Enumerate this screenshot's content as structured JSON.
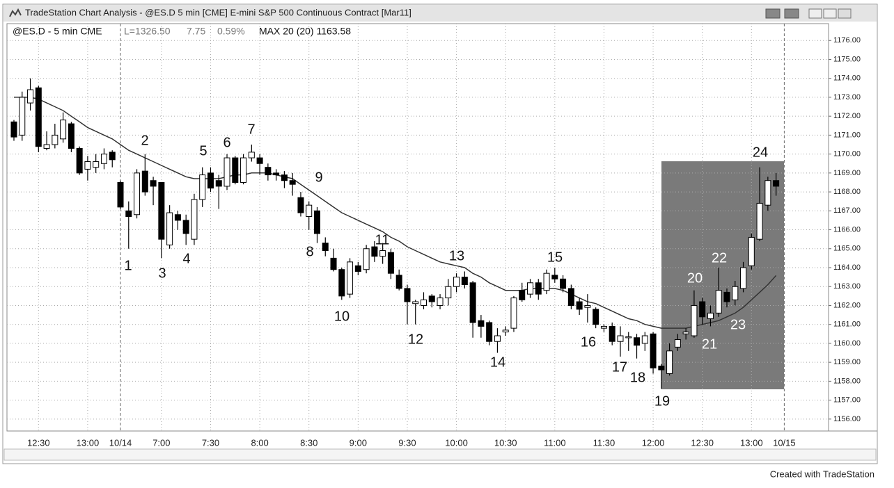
{
  "window_title": "TradeStation Chart Analysis - @ES.D 5 min [CME] E-mini S&P 500 Continuous Contract [Mar11]",
  "footer": "Created with TradeStation",
  "chart_data": {
    "type": "candlestick",
    "header": {
      "symbol": "@ES.D - 5 min CME",
      "last": "L=1326.50",
      "change": "7.75",
      "change_pct": "0.59%",
      "study": "MAX 20 (20) 1163.58"
    },
    "categories": [
      null,
      null,
      null,
      "12:30",
      null,
      null,
      null,
      null,
      null,
      "13:00",
      null,
      null,
      null,
      "10/14",
      null,
      null,
      null,
      null,
      "7:00",
      null,
      null,
      null,
      null,
      null,
      "7:30",
      null,
      null,
      null,
      null,
      null,
      "8:00",
      null,
      null,
      null,
      null,
      null,
      "8:30",
      null,
      null,
      null,
      null,
      null,
      "9:00",
      null,
      null,
      null,
      null,
      null,
      "9:30",
      null,
      null,
      null,
      null,
      null,
      "10:00",
      null,
      null,
      null,
      null,
      null,
      "10:30",
      null,
      null,
      null,
      null,
      null,
      "11:00",
      null,
      null,
      null,
      null,
      null,
      "11:30",
      null,
      null,
      null,
      null,
      null,
      "12:00",
      null,
      null,
      null,
      null,
      null,
      "12:30",
      null,
      null,
      null,
      null,
      null,
      "13:00",
      null,
      null,
      null
    ],
    "next_session_label": "10/15",
    "open": [
      1171.7,
      1171.0,
      1172.7,
      1173.5,
      1170.3,
      1170.5,
      1170.8,
      1171.6,
      1170.3,
      1169.2,
      1169.3,
      1169.5,
      1170.1,
      1168.5,
      1167.0,
      1166.8,
      1169.1,
      1168.6,
      1168.5,
      1165.2,
      1166.8,
      1166.5,
      1165.5,
      1167.6,
      1169.0,
      1168.6,
      1168.3,
      1169.8,
      1168.5,
      1169.8,
      1169.8,
      1169.3,
      1169.0,
      1168.9,
      1168.6,
      1167.7,
      1166.7,
      1167.0,
      1165.3,
      1164.5,
      1163.9,
      1162.6,
      1164.1,
      1163.9,
      1165.1,
      1164.6,
      1164.8,
      1163.6,
      1162.9,
      1162.1,
      1162.0,
      1162.5,
      1162.0,
      1162.4,
      1163.0,
      1163.5,
      1163.2,
      1161.2,
      1161.1,
      1160.1,
      1160.6,
      1160.8,
      1162.8,
      1162.6,
      1163.2,
      1162.8,
      1163.6,
      1163.4,
      1162.9,
      1162.2,
      1161.9,
      1161.8,
      1160.8,
      1160.9,
      1160.1,
      1160.3,
      1160.3,
      1160.0,
      1160.5,
      1158.8,
      1158.4,
      1159.8,
      1160.5,
      1160.4,
      1162.2,
      1161.3,
      1161.6,
      1162.7,
      1162.3,
      1162.9,
      1164.1,
      1165.5,
      1167.3,
      1168.6
    ],
    "high": [
      1171.8,
      1173.3,
      1174.0,
      1173.6,
      1171.2,
      1171.6,
      1172.2,
      1171.7,
      1170.4,
      1169.9,
      1170.0,
      1170.3,
      1170.2,
      1168.6,
      1167.5,
      1169.2,
      1170.0,
      1168.8,
      1168.5,
      1167.3,
      1167.0,
      1166.8,
      1167.9,
      1169.3,
      1169.3,
      1168.9,
      1170.0,
      1169.9,
      1170.0,
      1170.5,
      1170.0,
      1169.5,
      1169.2,
      1169.1,
      1169.0,
      1168.0,
      1167.5,
      1167.2,
      1165.6,
      1165.0,
      1164.0,
      1164.5,
      1164.3,
      1165.2,
      1165.4,
      1165.3,
      1165.0,
      1163.9,
      1163.1,
      1162.3,
      1162.7,
      1162.6,
      1162.6,
      1163.4,
      1163.7,
      1163.8,
      1163.3,
      1161.5,
      1161.2,
      1160.8,
      1160.9,
      1162.5,
      1163.2,
      1163.4,
      1163.4,
      1163.9,
      1164.0,
      1163.6,
      1163.1,
      1162.4,
      1162.6,
      1161.9,
      1161.0,
      1161.1,
      1160.9,
      1160.6,
      1160.5,
      1160.6,
      1160.6,
      1158.9,
      1160.0,
      1160.5,
      1160.8,
      1162.8,
      1162.4,
      1162.0,
      1164.0,
      1162.9,
      1163.3,
      1164.3,
      1165.8,
      1169.3,
      1168.8,
      1169.0
    ],
    "low": [
      1170.7,
      1170.7,
      1172.3,
      1170.1,
      1170.2,
      1170.3,
      1170.6,
      1170.1,
      1168.9,
      1168.6,
      1169.0,
      1169.2,
      1169.3,
      1167.1,
      1165.0,
      1166.6,
      1167.8,
      1167.3,
      1164.5,
      1165.0,
      1166.0,
      1165.2,
      1165.2,
      1167.2,
      1168.0,
      1167.1,
      1168.1,
      1168.4,
      1168.4,
      1169.6,
      1168.9,
      1168.6,
      1168.6,
      1168.2,
      1167.8,
      1166.7,
      1166.0,
      1165.3,
      1164.6,
      1163.8,
      1162.3,
      1162.4,
      1163.6,
      1163.7,
      1164.3,
      1164.2,
      1163.4,
      1162.8,
      1161.0,
      1161.0,
      1161.8,
      1161.9,
      1161.8,
      1162.0,
      1162.7,
      1162.9,
      1160.3,
      1160.3,
      1159.9,
      1159.5,
      1160.4,
      1160.6,
      1162.2,
      1162.4,
      1162.3,
      1162.6,
      1163.2,
      1162.7,
      1161.8,
      1161.5,
      1161.1,
      1160.8,
      1160.6,
      1159.9,
      1159.3,
      1159.6,
      1159.2,
      1159.6,
      1158.4,
      1157.6,
      1158.3,
      1159.6,
      1160.2,
      1160.3,
      1161.0,
      1160.9,
      1161.4,
      1161.9,
      1162.0,
      1162.7,
      1163.9,
      1165.4,
      1167.0,
      1167.8
    ],
    "close": [
      1170.9,
      1173.0,
      1173.4,
      1170.4,
      1170.5,
      1171.0,
      1171.8,
      1170.3,
      1169.0,
      1169.6,
      1169.6,
      1170.0,
      1169.7,
      1167.2,
      1166.7,
      1169.0,
      1168.0,
      1168.3,
      1165.5,
      1166.9,
      1166.5,
      1165.8,
      1167.6,
      1168.9,
      1168.2,
      1168.3,
      1169.8,
      1168.5,
      1169.8,
      1170.1,
      1169.5,
      1168.9,
      1168.9,
      1168.6,
      1168.4,
      1166.9,
      1167.3,
      1165.8,
      1164.9,
      1163.9,
      1162.5,
      1164.3,
      1163.8,
      1165.0,
      1164.6,
      1164.9,
      1163.7,
      1162.9,
      1162.2,
      1162.2,
      1162.3,
      1162.2,
      1162.4,
      1163.0,
      1163.5,
      1163.1,
      1161.1,
      1160.9,
      1160.1,
      1160.4,
      1160.7,
      1162.4,
      1162.3,
      1163.2,
      1162.6,
      1163.7,
      1163.4,
      1162.9,
      1162.0,
      1161.8,
      1162.0,
      1161.0,
      1160.9,
      1160.1,
      1160.4,
      1160.35,
      1159.9,
      1160.4,
      1158.7,
      1158.6,
      1159.6,
      1160.2,
      1160.6,
      1162.0,
      1161.4,
      1161.6,
      1162.8,
      1162.2,
      1163.0,
      1164.0,
      1165.6,
      1167.4,
      1168.6,
      1168.3
    ],
    "moving_average": {
      "color": "#333333",
      "values": [
        1173.0,
        1173.0,
        1173.0,
        1172.9,
        1172.7,
        1172.5,
        1172.3,
        1172.0,
        1171.7,
        1171.4,
        1171.2,
        1171.0,
        1170.8,
        1170.5,
        1170.2,
        1170.0,
        1169.8,
        1169.6,
        1169.4,
        1169.2,
        1169.0,
        1168.8,
        1168.7,
        1168.7,
        1168.7,
        1168.7,
        1168.8,
        1168.9,
        1168.9,
        1169.0,
        1169.0,
        1169.0,
        1168.9,
        1168.8,
        1168.7,
        1168.4,
        1168.1,
        1167.8,
        1167.5,
        1167.2,
        1166.9,
        1166.7,
        1166.5,
        1166.3,
        1166.1,
        1165.9,
        1165.6,
        1165.4,
        1165.1,
        1164.9,
        1164.7,
        1164.5,
        1164.3,
        1164.2,
        1164.1,
        1164.0,
        1163.7,
        1163.5,
        1163.2,
        1163.0,
        1162.8,
        1162.8,
        1162.8,
        1162.9,
        1162.9,
        1162.9,
        1162.9,
        1162.8,
        1162.6,
        1162.4,
        1162.2,
        1162.1,
        1161.9,
        1161.7,
        1161.5,
        1161.3,
        1161.2,
        1161.0,
        1160.9,
        1160.8,
        1160.8,
        1160.8,
        1160.8,
        1160.9,
        1161.0,
        1161.1,
        1161.2,
        1161.4,
        1161.6,
        1161.9,
        1162.3,
        1162.7,
        1163.1,
        1163.58
      ]
    },
    "up_color": "#ffffff",
    "down_color": "#000000",
    "ylim": [
      1155.37,
      1176.89
    ],
    "yticks": [
      {
        "value": 1156,
        "label": "1156.00"
      },
      {
        "value": 1157,
        "label": "1157.00"
      },
      {
        "value": 1158,
        "label": "1158.00"
      },
      {
        "value": 1159,
        "label": "1159.00"
      },
      {
        "value": 1160,
        "label": "1160.00"
      },
      {
        "value": 1161,
        "label": "1161.00"
      },
      {
        "value": 1162,
        "label": "1162.00"
      },
      {
        "value": 1163,
        "label": "1163.00"
      },
      {
        "value": 1164,
        "label": "1164.00"
      },
      {
        "value": 1165,
        "label": "1165.00"
      },
      {
        "value": 1166,
        "label": "1166.00"
      },
      {
        "value": 1167,
        "label": "1167.00"
      },
      {
        "value": 1168,
        "label": "1168.00"
      },
      {
        "value": 1169,
        "label": "1169.00"
      },
      {
        "value": 1170,
        "label": "1170.00"
      },
      {
        "value": 1171,
        "label": "1171.00"
      },
      {
        "value": 1172,
        "label": "1172.00"
      },
      {
        "value": 1173,
        "label": "1173.00"
      },
      {
        "value": 1174,
        "label": "1174.00"
      },
      {
        "value": 1175,
        "label": "1175.00"
      },
      {
        "value": 1176,
        "label": "1176.00"
      }
    ],
    "grid": true,
    "annotations": [
      "1",
      "2",
      "3",
      "4",
      "5",
      "6",
      "7",
      "8",
      "9",
      "10",
      "11",
      "12",
      "13",
      "14",
      "15",
      "16",
      "17",
      "18",
      "19",
      "20",
      "21",
      "22",
      "23",
      "24"
    ]
  }
}
